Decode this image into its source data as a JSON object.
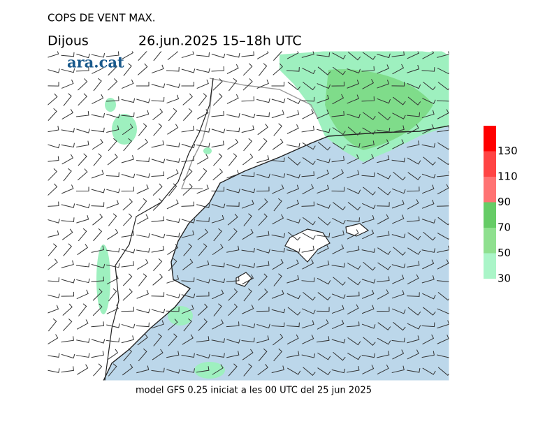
{
  "header": {
    "title": "COPS DE VENT MAX.",
    "day": "Dijous",
    "period": "26.jun.2025 15–18h UTC",
    "logo": "ara.cat"
  },
  "legend": {
    "levels": [
      30,
      50,
      70,
      90,
      110,
      130
    ],
    "colors": [
      "#aaf5c8",
      "#8fe08f",
      "#66cc66",
      "#ff7373",
      "#ff4444",
      "#ff0000"
    ]
  },
  "footer": "model GFS 0.25 iniciat a les 00 UTC del 25 jun 2025"
}
